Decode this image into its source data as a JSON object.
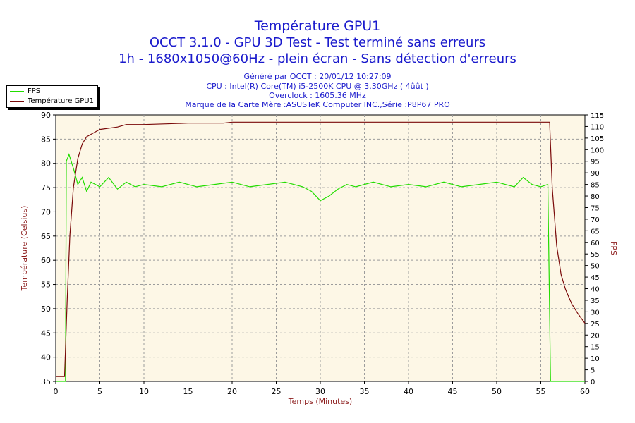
{
  "header": {
    "title": "Température GPU1",
    "subtitle1": "OCCT 3.1.0 - GPU 3D Test - Test terminé sans erreurs",
    "subtitle2": "1h - 1680x1050@60Hz - plein écran - Sans détection d'erreurs"
  },
  "info": {
    "generated": "Généré par OCCT : 20/01/12 10:27:09",
    "cpu": "CPU : Intel(R) Core(TM) i5-2500K CPU @ 3.30GHz ( 4ûût )",
    "overclock": "Overclock : 1605.36 MHz",
    "motherboard": "Marque de la Carte Mère :ASUSTeK Computer INC.,Série :P8P67 PRO"
  },
  "colors": {
    "fps": "#22dd00",
    "temp": "#7a0a0a",
    "plot_bg": "#fdf7e6",
    "grid": "#9c9c9c",
    "title": "#1a1acc",
    "axis_label": "#8b1a1a"
  },
  "chart_data": {
    "type": "line",
    "xlabel": "Temps (Minutes)",
    "ylabel_left": "Température (Celsius)",
    "ylabel_right": "FPS",
    "xlim": [
      0,
      60
    ],
    "ylim_left": [
      35,
      90
    ],
    "ylim_right": [
      0,
      115
    ],
    "x_ticks": [
      0,
      5,
      10,
      15,
      20,
      25,
      30,
      35,
      40,
      45,
      50,
      55,
      60
    ],
    "y_left_ticks": [
      35,
      40,
      45,
      50,
      55,
      60,
      65,
      70,
      75,
      80,
      85,
      90
    ],
    "y_right_ticks": [
      0,
      5,
      10,
      15,
      20,
      25,
      30,
      35,
      40,
      45,
      50,
      55,
      60,
      65,
      70,
      75,
      80,
      85,
      90,
      95,
      100,
      105,
      110,
      115
    ],
    "grid": true,
    "series": [
      {
        "name": "FPS",
        "axis": "right",
        "x": [
          0,
          1.1,
          1.2,
          1.5,
          2,
          2.5,
          3,
          3.5,
          4,
          5,
          6,
          7,
          8,
          9,
          10,
          12,
          14,
          16,
          18,
          20,
          22,
          24,
          26,
          28,
          29,
          30,
          31,
          32,
          33,
          34,
          36,
          38,
          40,
          42,
          44,
          46,
          48,
          50,
          52,
          53,
          54,
          55,
          55.8,
          56.1,
          56.2,
          60
        ],
        "y": [
          0,
          0,
          95,
          98,
          92,
          85,
          88,
          82,
          86,
          84,
          88,
          83,
          86,
          84,
          85,
          84,
          86,
          84,
          85,
          86,
          84,
          85,
          86,
          84,
          82,
          78,
          80,
          83,
          85,
          84,
          86,
          84,
          85,
          84,
          86,
          84,
          85,
          86,
          84,
          88,
          85,
          84,
          85,
          0,
          0,
          0
        ]
      },
      {
        "name": "Température GPU1",
        "axis": "left",
        "x": [
          0,
          1,
          1.3,
          1.6,
          2,
          2.5,
          3,
          3.5,
          4,
          5,
          7,
          8,
          10,
          15,
          19,
          20,
          25,
          30,
          35,
          40,
          45,
          50,
          55,
          56,
          56.3,
          56.8,
          57.3,
          57.8,
          58.5,
          59.2,
          60
        ],
        "y": [
          36,
          36,
          52,
          65,
          75,
          81,
          84,
          85.5,
          86,
          87,
          87.5,
          88,
          88,
          88.3,
          88.3,
          88.5,
          88.5,
          88.5,
          88.5,
          88.5,
          88.5,
          88.5,
          88.5,
          88.5,
          75,
          63,
          57,
          54,
          51,
          49,
          47
        ]
      }
    ]
  },
  "legend": [
    {
      "label": "FPS",
      "color": "#22dd00"
    },
    {
      "label": "Température GPU1",
      "color": "#7a0a0a"
    }
  ]
}
